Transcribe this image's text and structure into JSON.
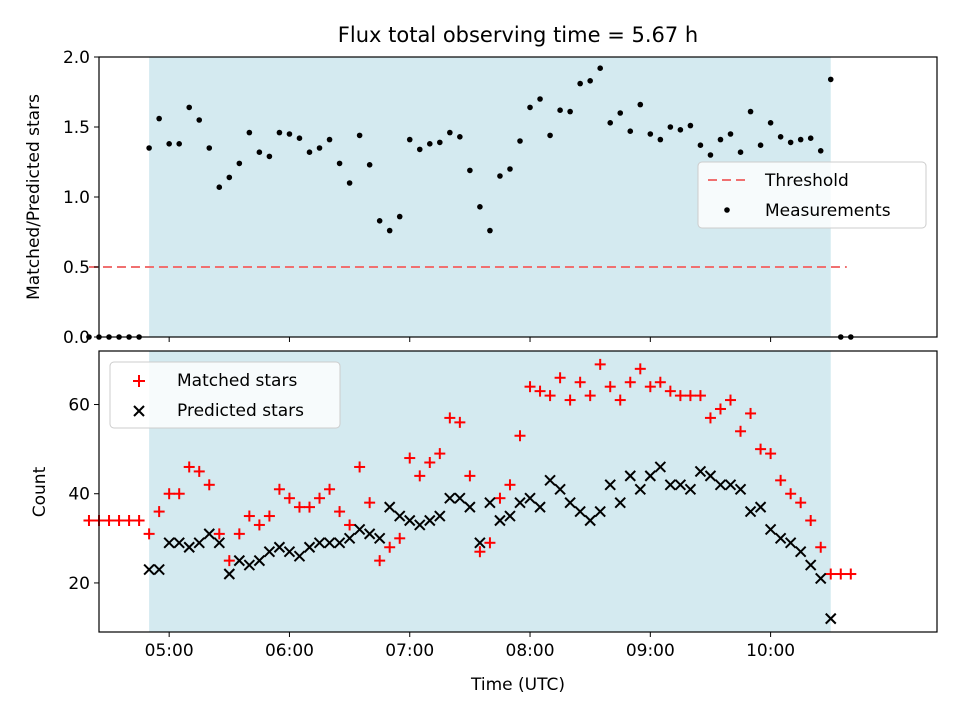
{
  "chart_data": [
    {
      "type": "scatter",
      "title": "Flux total observing time = 5.67 h",
      "xlabel": "",
      "ylabel": "Matched/Predicted stars",
      "xlim": [
        "04:25",
        "11:23"
      ],
      "ylim": [
        0,
        2.0
      ],
      "yticks": [
        0.0,
        0.5,
        1.0,
        1.5,
        2.0
      ],
      "yticklabels": [
        "0.0",
        "0.5",
        "1.0",
        "1.5",
        "2.0"
      ],
      "observing_window": [
        "04:50",
        "10:30"
      ],
      "window_color": "#d4eaf0",
      "legend_position": "right",
      "threshold": {
        "name": "Threshold",
        "value": 0.5,
        "x_range": [
          "04:20",
          "10:38"
        ],
        "color": "#f07070"
      },
      "series": [
        {
          "name": "Measurements",
          "color": "#000000",
          "x": [
            "04:20",
            "04:25",
            "04:30",
            "04:35",
            "04:40",
            "04:45",
            "04:50",
            "04:55",
            "05:00",
            "05:05",
            "05:10",
            "05:15",
            "05:20",
            "05:25",
            "05:30",
            "05:35",
            "05:40",
            "05:45",
            "05:50",
            "05:55",
            "06:00",
            "06:05",
            "06:10",
            "06:15",
            "06:20",
            "06:25",
            "06:30",
            "06:35",
            "06:40",
            "06:45",
            "06:50",
            "06:55",
            "07:00",
            "07:05",
            "07:10",
            "07:15",
            "07:20",
            "07:25",
            "07:30",
            "07:35",
            "07:40",
            "07:45",
            "07:50",
            "07:55",
            "08:00",
            "08:05",
            "08:10",
            "08:15",
            "08:20",
            "08:25",
            "08:30",
            "08:35",
            "08:40",
            "08:45",
            "08:50",
            "08:55",
            "09:00",
            "09:05",
            "09:10",
            "09:15",
            "09:20",
            "09:25",
            "09:30",
            "09:35",
            "09:40",
            "09:45",
            "09:50",
            "09:55",
            "10:00",
            "10:05",
            "10:10",
            "10:15",
            "10:20",
            "10:25",
            "10:30",
            "10:35",
            "10:40"
          ],
          "y": [
            0,
            0,
            0,
            0,
            0,
            0,
            1.35,
            1.56,
            1.38,
            1.38,
            1.64,
            1.55,
            1.35,
            1.07,
            1.14,
            1.24,
            1.46,
            1.32,
            1.29,
            1.46,
            1.45,
            1.42,
            1.32,
            1.35,
            1.41,
            1.24,
            1.1,
            1.44,
            1.23,
            0.83,
            0.76,
            0.86,
            1.41,
            1.34,
            1.38,
            1.39,
            1.46,
            1.43,
            1.19,
            0.93,
            0.76,
            1.15,
            1.2,
            1.4,
            1.64,
            1.7,
            1.44,
            1.62,
            1.61,
            1.81,
            1.83,
            1.92,
            1.53,
            1.6,
            1.47,
            1.66,
            1.45,
            1.41,
            1.5,
            1.48,
            1.51,
            1.37,
            1.3,
            1.41,
            1.45,
            1.32,
            1.61,
            1.37,
            1.53,
            1.43,
            1.39,
            1.41,
            1.42,
            1.33,
            1.84,
            0,
            0
          ]
        }
      ]
    },
    {
      "type": "scatter",
      "title": "",
      "xlabel": "Time (UTC)",
      "ylabel": "Count",
      "xlim": [
        "04:25",
        "11:23"
      ],
      "ylim": [
        9,
        72
      ],
      "yticks": [
        20,
        40,
        60
      ],
      "yticklabels": [
        "20",
        "40",
        "60"
      ],
      "xticks": [
        "05:00",
        "06:00",
        "07:00",
        "08:00",
        "09:00",
        "10:00"
      ],
      "xticklabels": [
        "05:00",
        "06:00",
        "07:00",
        "08:00",
        "09:00",
        "10:00"
      ],
      "observing_window": [
        "04:50",
        "10:30"
      ],
      "window_color": "#d4eaf0",
      "legend_position": "top-left",
      "series": [
        {
          "name": "Matched stars",
          "marker": "plus",
          "color": "#ff0000",
          "x": [
            "04:20",
            "04:25",
            "04:30",
            "04:35",
            "04:40",
            "04:45",
            "04:50",
            "04:55",
            "05:00",
            "05:05",
            "05:10",
            "05:15",
            "05:20",
            "05:25",
            "05:30",
            "05:35",
            "05:40",
            "05:45",
            "05:50",
            "05:55",
            "06:00",
            "06:05",
            "06:10",
            "06:15",
            "06:20",
            "06:25",
            "06:30",
            "06:35",
            "06:40",
            "06:45",
            "06:50",
            "06:55",
            "07:00",
            "07:05",
            "07:10",
            "07:15",
            "07:20",
            "07:25",
            "07:30",
            "07:35",
            "07:40",
            "07:45",
            "07:50",
            "07:55",
            "08:00",
            "08:05",
            "08:10",
            "08:15",
            "08:20",
            "08:25",
            "08:30",
            "08:35",
            "08:40",
            "08:45",
            "08:50",
            "08:55",
            "09:00",
            "09:05",
            "09:10",
            "09:15",
            "09:20",
            "09:25",
            "09:30",
            "09:35",
            "09:40",
            "09:45",
            "09:50",
            "09:55",
            "10:00",
            "10:05",
            "10:10",
            "10:15",
            "10:20",
            "10:25",
            "10:30",
            "10:35",
            "10:40"
          ],
          "y": [
            34,
            34,
            34,
            34,
            34,
            34,
            31,
            36,
            40,
            40,
            46,
            45,
            42,
            31,
            25,
            31,
            35,
            33,
            35,
            41,
            39,
            37,
            37,
            39,
            41,
            36,
            33,
            46,
            38,
            25,
            28,
            30,
            48,
            44,
            47,
            49,
            57,
            56,
            44,
            27,
            29,
            39,
            42,
            53,
            64,
            63,
            62,
            66,
            61,
            65,
            62,
            69,
            64,
            61,
            65,
            68,
            64,
            65,
            63,
            62,
            62,
            62,
            57,
            59,
            61,
            54,
            58,
            50,
            49,
            43,
            40,
            38,
            34,
            28,
            22,
            22,
            22
          ]
        },
        {
          "name": "Predicted stars",
          "marker": "x",
          "color": "#000000",
          "x": [
            "04:50",
            "04:55",
            "05:00",
            "05:05",
            "05:10",
            "05:15",
            "05:20",
            "05:25",
            "05:30",
            "05:35",
            "05:40",
            "05:45",
            "05:50",
            "05:55",
            "06:00",
            "06:05",
            "06:10",
            "06:15",
            "06:20",
            "06:25",
            "06:30",
            "06:35",
            "06:40",
            "06:45",
            "06:50",
            "06:55",
            "07:00",
            "07:05",
            "07:10",
            "07:15",
            "07:20",
            "07:25",
            "07:30",
            "07:35",
            "07:40",
            "07:45",
            "07:50",
            "07:55",
            "08:00",
            "08:05",
            "08:10",
            "08:15",
            "08:20",
            "08:25",
            "08:30",
            "08:35",
            "08:40",
            "08:45",
            "08:50",
            "08:55",
            "09:00",
            "09:05",
            "09:10",
            "09:15",
            "09:20",
            "09:25",
            "09:30",
            "09:35",
            "09:40",
            "09:45",
            "09:50",
            "09:55",
            "10:00",
            "10:05",
            "10:10",
            "10:15",
            "10:20",
            "10:25",
            "10:30"
          ],
          "y": [
            23,
            23,
            29,
            29,
            28,
            29,
            31,
            29,
            22,
            25,
            24,
            25,
            27,
            28,
            27,
            26,
            28,
            29,
            29,
            29,
            30,
            32,
            31,
            30,
            37,
            35,
            34,
            33,
            34,
            35,
            39,
            39,
            37,
            29,
            38,
            34,
            35,
            38,
            39,
            37,
            43,
            41,
            38,
            36,
            34,
            36,
            42,
            38,
            44,
            41,
            44,
            46,
            42,
            42,
            41,
            45,
            44,
            42,
            42,
            41,
            36,
            37,
            32,
            30,
            29,
            27,
            24,
            21,
            12
          ]
        }
      ]
    }
  ]
}
